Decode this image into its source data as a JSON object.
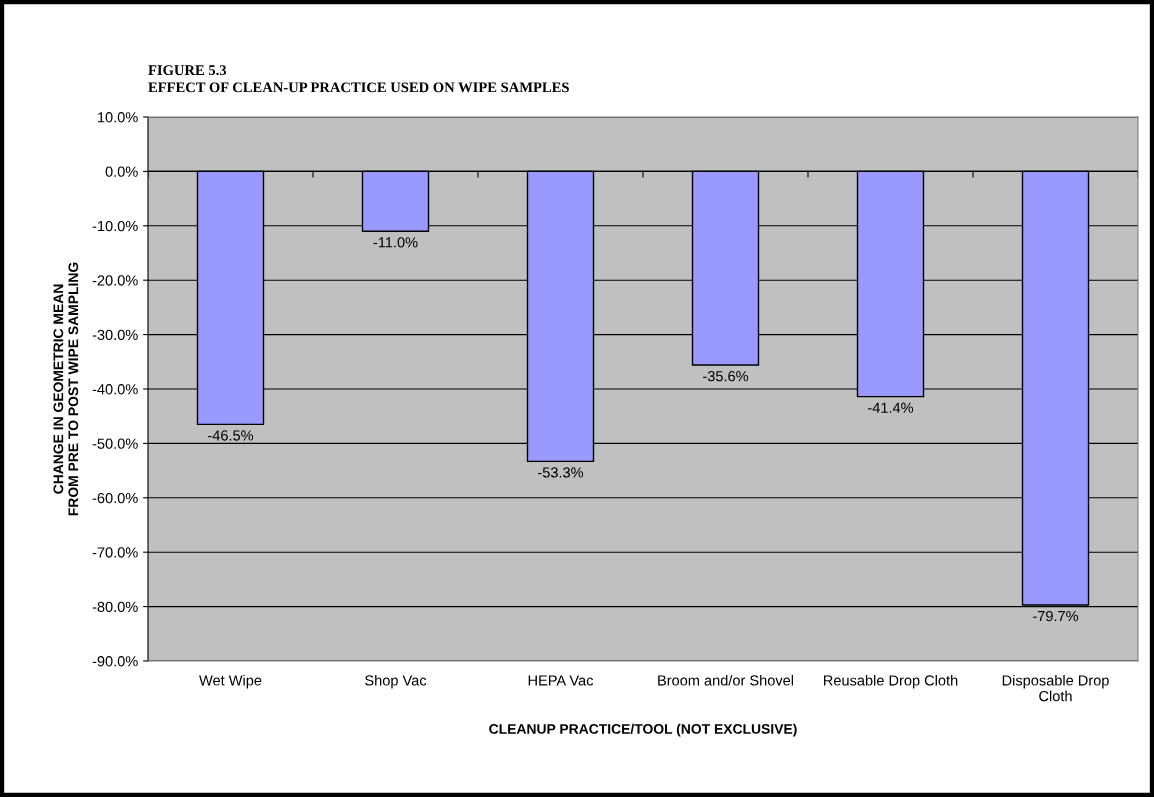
{
  "chart_data": {
    "type": "bar",
    "title": "FIGURE 5.3",
    "subtitle": "EFFECT OF CLEAN-UP PRACTICE USED ON WIPE SAMPLES",
    "xlabel": "CLEANUP PRACTICE/TOOL (NOT EXCLUSIVE)",
    "ylabel": "CHANGE IN GEOMETRIC MEAN\nFROM PRE TO POST WIPE SAMPLING",
    "categories": [
      "Wet Wipe",
      "Shop Vac",
      "HEPA Vac",
      "Broom and/or Shovel",
      "Reusable Drop Cloth",
      "Disposable Drop\nCloth"
    ],
    "values": [
      -46.5,
      -11.0,
      -53.3,
      -35.6,
      -41.4,
      -79.7
    ],
    "value_labels": [
      "-46.5%",
      "-11.0%",
      "-53.3%",
      "-35.6%",
      "-41.4%",
      "-79.7%"
    ],
    "color": "#9999ff",
    "ylim": [
      -90,
      10
    ],
    "yticks": [
      {
        "value": 10,
        "label": "10.0%"
      },
      {
        "value": 0,
        "label": "0.0%"
      },
      {
        "value": -10,
        "label": "-10.0%"
      },
      {
        "value": -20,
        "label": "-20.0%"
      },
      {
        "value": -30,
        "label": "-30.0%"
      },
      {
        "value": -40,
        "label": "-40.0%"
      },
      {
        "value": -50,
        "label": "-50.0%"
      },
      {
        "value": -60,
        "label": "-60.0%"
      },
      {
        "value": -70,
        "label": "-70.0%"
      },
      {
        "value": -80,
        "label": "-80.0%"
      },
      {
        "value": -90,
        "label": "-90.0%"
      }
    ],
    "grid": "y",
    "legend": false
  }
}
